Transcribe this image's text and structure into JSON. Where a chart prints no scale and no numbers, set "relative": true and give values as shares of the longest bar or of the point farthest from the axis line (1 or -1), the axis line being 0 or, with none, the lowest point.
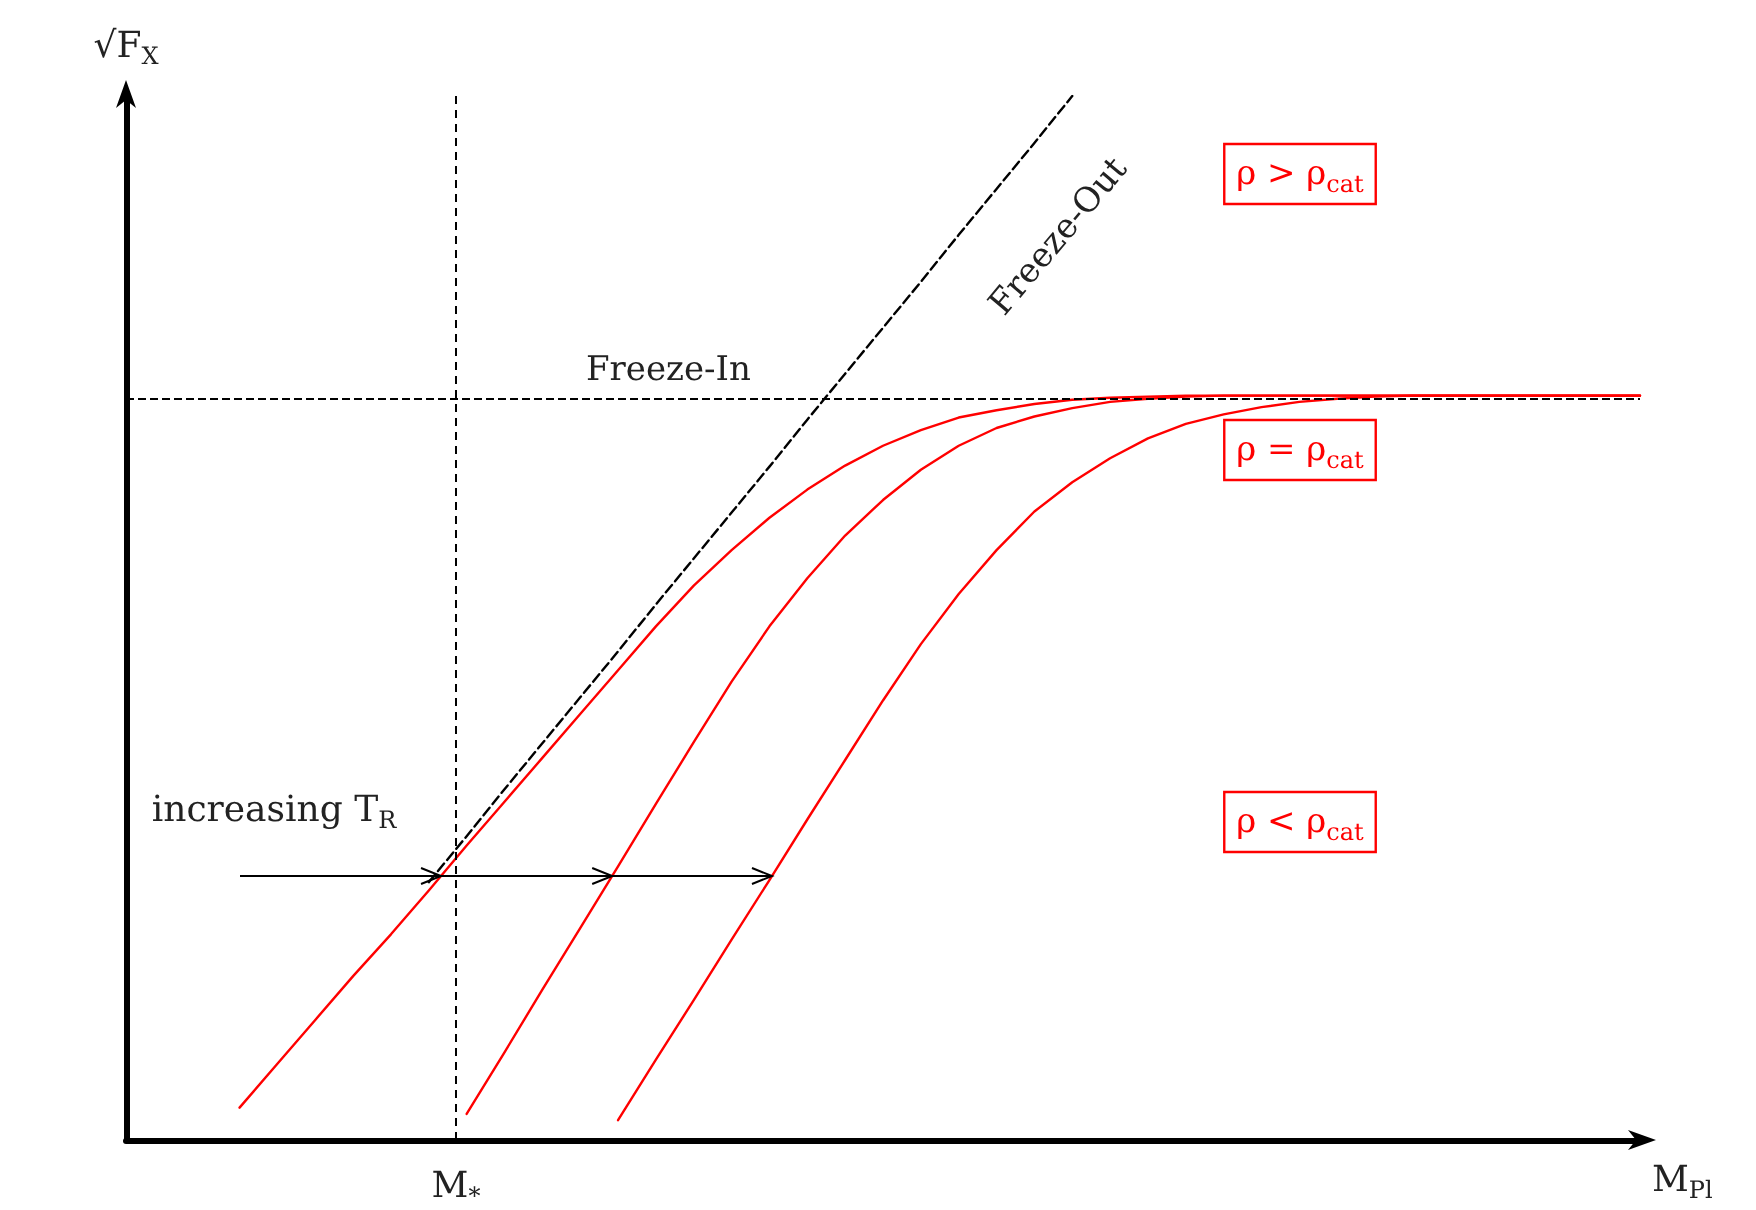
{
  "chart_data": {
    "type": "line",
    "relative": true,
    "xlabel": "M$_{Pl}$",
    "ylabel": "√F$_{X}$",
    "marker": "none",
    "categories": [
      null,
      null,
      null,
      null,
      null,
      null,
      null,
      null,
      null,
      null,
      null,
      null,
      null,
      null,
      null,
      null,
      null,
      null,
      null,
      null,
      null,
      null,
      null,
      null,
      null,
      null,
      null,
      null,
      null,
      null,
      null,
      null,
      null,
      null,
      null,
      null,
      null,
      null,
      null,
      null,
      null
    ],
    "series": [
      {
        "color": "#ff0000",
        "values": [
          null,
          null,
          null,
          0.031,
          0.073,
          0.115,
          0.157,
          0.197,
          0.239,
          0.282,
          0.324,
          0.366,
          0.408,
          0.45,
          0.492,
          0.531,
          0.565,
          0.596,
          0.623,
          0.646,
          0.665,
          0.68,
          0.692,
          0.699,
          0.705,
          0.709,
          0.711,
          0.712,
          0.713,
          0.713,
          0.713,
          0.713,
          0.713,
          0.713,
          0.713,
          0.713,
          0.713,
          0.713,
          0.713,
          0.713,
          0.713
        ]
      },
      {
        "color": "#ff0000",
        "values": [
          null,
          null,
          null,
          null,
          null,
          null,
          null,
          null,
          null,
          0.025,
          0.084,
          0.144,
          0.203,
          0.262,
          0.322,
          0.381,
          0.439,
          0.492,
          0.538,
          0.579,
          0.613,
          0.642,
          0.665,
          0.682,
          0.693,
          0.701,
          0.707,
          0.71,
          0.712,
          0.713,
          0.713,
          0.713,
          0.713,
          0.713,
          0.713,
          0.713,
          0.713,
          0.713,
          0.713,
          0.713,
          0.713
        ]
      },
      {
        "color": "#ff0000",
        "values": [
          null,
          null,
          null,
          null,
          null,
          null,
          null,
          null,
          null,
          null,
          null,
          null,
          null,
          0.019,
          0.077,
          0.134,
          0.192,
          0.249,
          0.307,
          0.364,
          0.421,
          0.475,
          0.523,
          0.565,
          0.602,
          0.63,
          0.653,
          0.672,
          0.686,
          0.695,
          0.702,
          0.707,
          0.71,
          0.712,
          0.713,
          0.713,
          0.713,
          0.713,
          0.713,
          0.713,
          0.713
        ]
      },
      {
        "name": "Freeze-Out",
        "color": "#000000",
        "line_style": "dashed",
        "values": [
          null,
          null,
          null,
          null,
          null,
          null,
          null,
          null,
          0.247,
          0.291,
          0.336,
          0.38,
          0.424,
          0.468,
          0.513,
          0.557,
          0.601,
          0.645,
          0.69,
          0.734,
          0.778,
          0.822,
          0.867,
          0.911,
          0.955,
          1,
          null,
          null,
          null,
          null,
          null,
          null,
          null,
          null,
          null,
          null,
          null,
          null,
          null,
          null,
          null
        ]
      }
    ],
    "ref_lines": [
      {
        "axis": "y",
        "value": 0.713,
        "label": "Freeze-In",
        "color": "#000000",
        "line_style": "dashed"
      }
    ],
    "annotations": [
      "increasing T$_{R}$",
      "ρ > ρ$_{cat}$",
      "ρ = ρ$_{cat}$",
      "ρ < ρ$_{cat}$",
      "M$_{*}$"
    ]
  }
}
